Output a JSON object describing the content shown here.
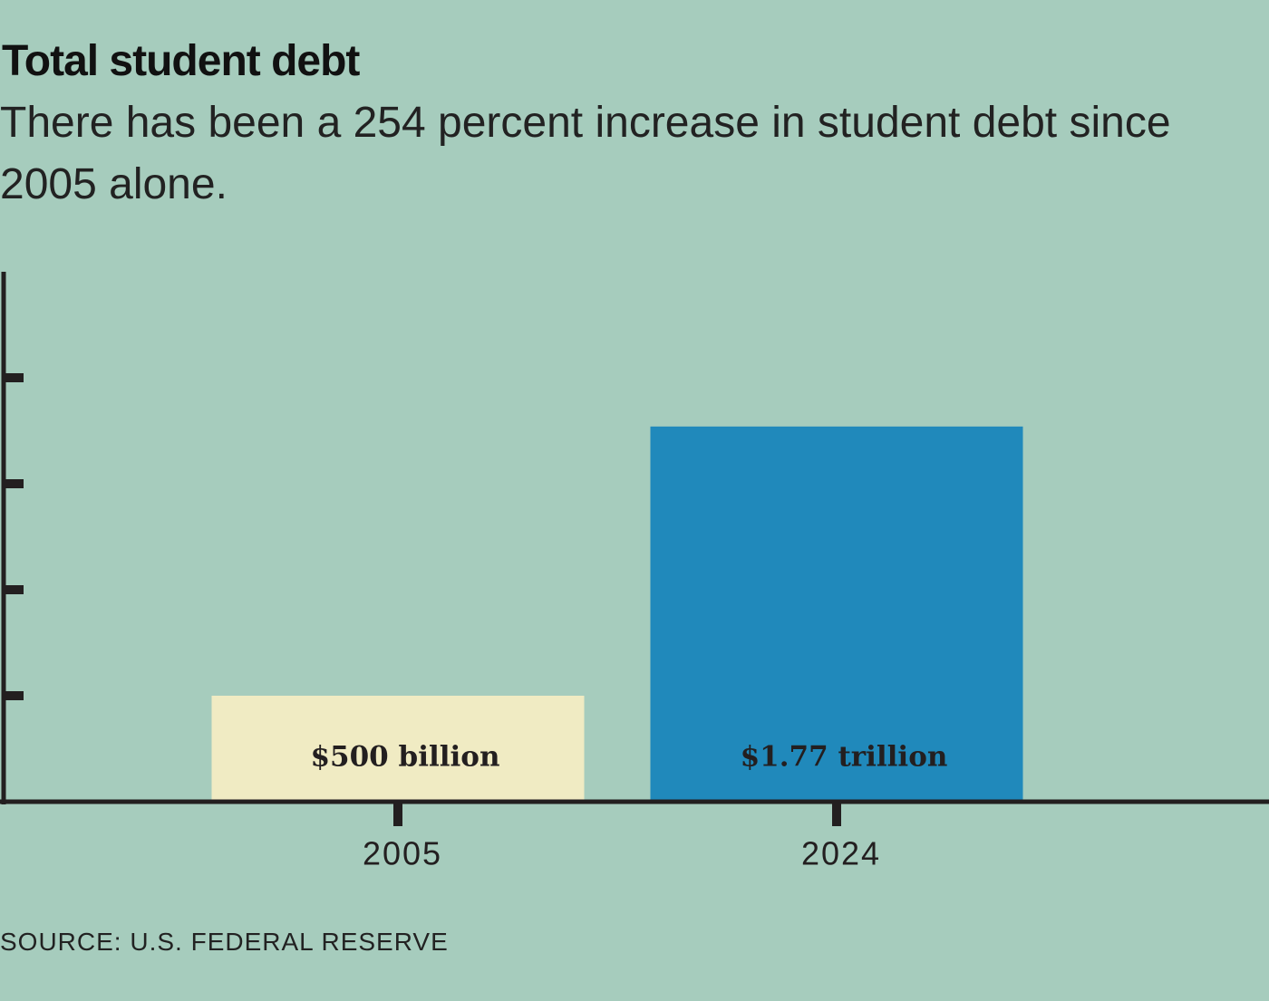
{
  "chart_data": {
    "type": "bar",
    "title": "Total student debt",
    "subtitle": "There has been a 254 percent increase in student debt since 2005 alone.",
    "source": "SOURCE: U.S. FEDERAL RESERVE",
    "categories": [
      "2005",
      "2024"
    ],
    "values": [
      500000000000,
      1770000000000
    ],
    "value_labels": [
      "$500 billion",
      "$1.77 trillion"
    ],
    "colors": [
      "#f0ebc3",
      "#2089bb"
    ],
    "ylim": [
      0,
      2500000000000
    ],
    "yticks": [
      500000000000,
      1000000000000,
      1500000000000,
      2000000000000
    ]
  }
}
